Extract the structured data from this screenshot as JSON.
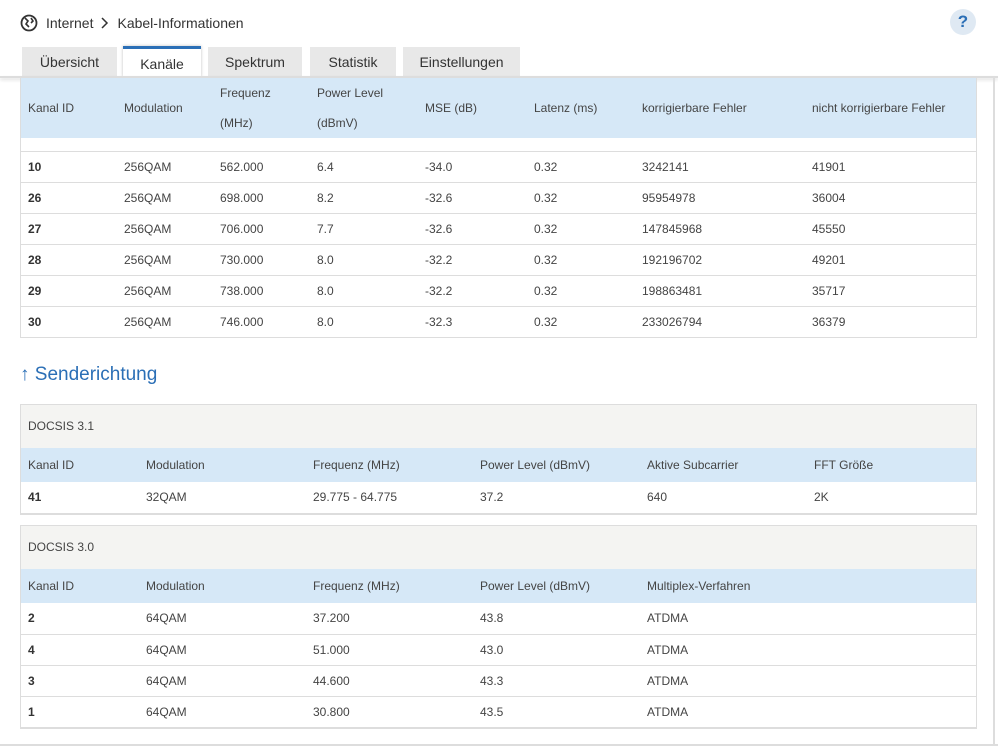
{
  "breadcrumb": {
    "items": [
      "Internet",
      "Kabel-Informationen"
    ]
  },
  "help_button": "?",
  "tabs": [
    "Übersicht",
    "Kanäle",
    "Spektrum",
    "Statistik",
    "Einstellungen"
  ],
  "downstream_table": {
    "columns": [
      "Kanal ID",
      "Modulation",
      "Frequenz (MHz)",
      "Power Level (dBmV)",
      "MSE (dB)",
      "Latenz (ms)",
      "korrigierbare Fehler",
      "nicht korrigierbare Fehler"
    ],
    "rows": [
      [
        "10",
        "256QAM",
        "562.000",
        "6.4",
        "-34.0",
        "0.32",
        "3242141",
        "41901"
      ],
      [
        "26",
        "256QAM",
        "698.000",
        "8.2",
        "-32.6",
        "0.32",
        "95954978",
        "36004"
      ],
      [
        "27",
        "256QAM",
        "706.000",
        "7.7",
        "-32.6",
        "0.32",
        "147845968",
        "45550"
      ],
      [
        "28",
        "256QAM",
        "730.000",
        "8.0",
        "-32.2",
        "0.32",
        "192196702",
        "49201"
      ],
      [
        "29",
        "256QAM",
        "738.000",
        "8.0",
        "-32.2",
        "0.32",
        "198863481",
        "35717"
      ],
      [
        "30",
        "256QAM",
        "746.000",
        "8.0",
        "-32.3",
        "0.32",
        "233026794",
        "36379"
      ]
    ]
  },
  "upstream": {
    "heading": "↑ Senderichtung",
    "sections": [
      {
        "title": "DOCSIS 3.1",
        "columns": [
          "Kanal ID",
          "Modulation",
          "Frequenz (MHz)",
          "Power Level (dBmV)",
          "Aktive Subcarrier",
          "FFT Größe"
        ],
        "rows": [
          [
            "41",
            "32QAM",
            "29.775 - 64.775",
            "37.2",
            "640",
            "2K"
          ]
        ]
      },
      {
        "title": "DOCSIS 3.0",
        "columns": [
          "Kanal ID",
          "Modulation",
          "Frequenz (MHz)",
          "Power Level (dBmV)",
          "Multiplex-Verfahren"
        ],
        "rows": [
          [
            "2",
            "64QAM",
            "37.200",
            "43.8",
            "ATDMA"
          ],
          [
            "4",
            "64QAM",
            "51.000",
            "43.0",
            "ATDMA"
          ],
          [
            "3",
            "64QAM",
            "44.600",
            "43.3",
            "ATDMA"
          ],
          [
            "1",
            "64QAM",
            "30.800",
            "43.5",
            "ATDMA"
          ]
        ]
      }
    ]
  }
}
